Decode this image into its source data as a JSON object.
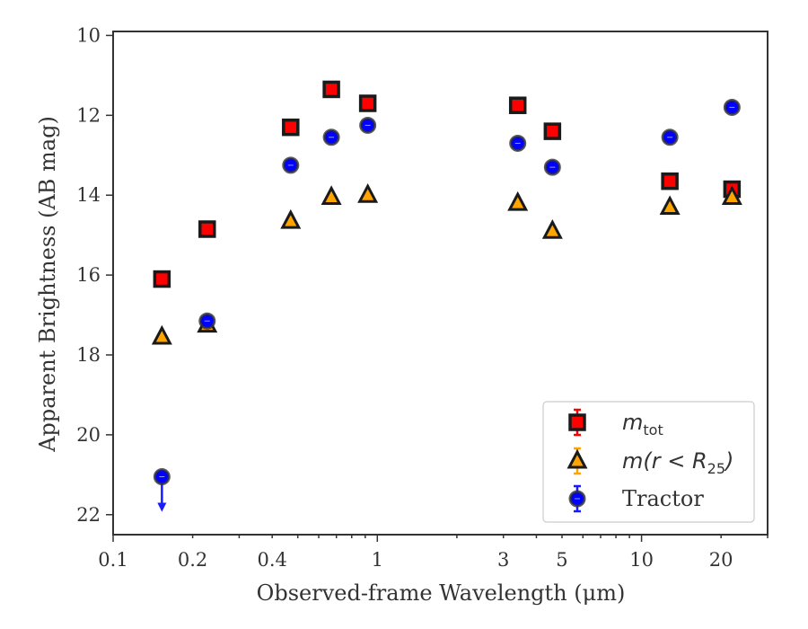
{
  "chart_data": {
    "type": "scatter",
    "xlabel": "Observed-frame Wavelength (μm)",
    "ylabel": "Apparent Brightness (AB mag)",
    "x_scale": "log",
    "xlim": [
      0.1,
      30
    ],
    "ylim": [
      22.5,
      9.9
    ],
    "y_inverted": true,
    "grid": false,
    "legend_position": "lower-right",
    "x_ticks": [
      {
        "value": 0.1,
        "label": "0.1"
      },
      {
        "value": 0.2,
        "label": "0.2"
      },
      {
        "value": 0.4,
        "label": "0.4"
      },
      {
        "value": 1,
        "label": "1"
      },
      {
        "value": 3,
        "label": "3"
      },
      {
        "value": 5,
        "label": "5"
      },
      {
        "value": 10,
        "label": "10"
      },
      {
        "value": 20,
        "label": "20"
      }
    ],
    "y_ticks": [
      {
        "value": 10,
        "label": "10"
      },
      {
        "value": 12,
        "label": "12"
      },
      {
        "value": 14,
        "label": "14"
      },
      {
        "value": 16,
        "label": "16"
      },
      {
        "value": 18,
        "label": "18"
      },
      {
        "value": 20,
        "label": "20"
      },
      {
        "value": 22,
        "label": "22"
      }
    ],
    "series": [
      {
        "name": "m_tot",
        "legend_label": {
          "main": "m",
          "sub": "tot",
          "rest": ""
        },
        "marker": "square",
        "face_color": "#ff0000",
        "edge_color": "#1a1a1a",
        "errbar_color": "#ff0000",
        "points": [
          {
            "x": 0.153,
            "y": 16.1
          },
          {
            "x": 0.227,
            "y": 14.85
          },
          {
            "x": 0.47,
            "y": 12.3
          },
          {
            "x": 0.67,
            "y": 11.35
          },
          {
            "x": 0.92,
            "y": 11.7
          },
          {
            "x": 3.4,
            "y": 11.75
          },
          {
            "x": 4.6,
            "y": 12.4
          },
          {
            "x": 12.8,
            "y": 13.65
          },
          {
            "x": 22.0,
            "y": 13.85
          }
        ]
      },
      {
        "name": "m(r < R_25)",
        "legend_label": {
          "main": "m(r < R",
          "sub": "25",
          "rest": ")"
        },
        "marker": "triangle",
        "face_color": "#ffa500",
        "edge_color": "#1a1a1a",
        "errbar_color": "#ffa500",
        "points": [
          {
            "x": 0.153,
            "y": 17.55
          },
          {
            "x": 0.227,
            "y": 17.25
          },
          {
            "x": 0.47,
            "y": 14.65
          },
          {
            "x": 0.67,
            "y": 14.05
          },
          {
            "x": 0.92,
            "y": 14.0
          },
          {
            "x": 3.4,
            "y": 14.2
          },
          {
            "x": 4.6,
            "y": 14.9
          },
          {
            "x": 12.8,
            "y": 14.3
          },
          {
            "x": 22.0,
            "y": 14.05
          }
        ]
      },
      {
        "name": "Tractor",
        "legend_label": {
          "main": "Tractor",
          "sub": "",
          "rest": ""
        },
        "marker": "circle",
        "face_color": "#0000ff",
        "edge_color": "#333333",
        "errbar_color": "#1a1aff",
        "points": [
          {
            "x": 0.153,
            "y": 21.05,
            "upper_limit": true
          },
          {
            "x": 0.227,
            "y": 17.15
          },
          {
            "x": 0.47,
            "y": 13.25
          },
          {
            "x": 0.67,
            "y": 12.55
          },
          {
            "x": 0.92,
            "y": 12.25
          },
          {
            "x": 3.4,
            "y": 12.7
          },
          {
            "x": 4.6,
            "y": 13.3
          },
          {
            "x": 12.8,
            "y": 12.55
          },
          {
            "x": 22.0,
            "y": 11.8
          }
        ]
      }
    ]
  }
}
